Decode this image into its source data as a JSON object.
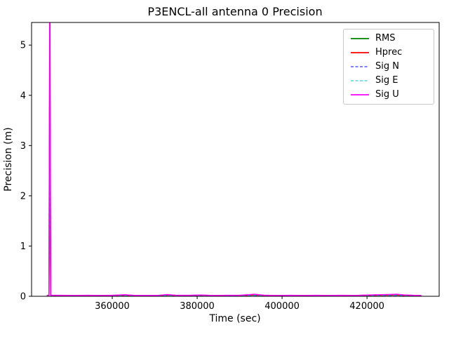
{
  "chart_data": {
    "type": "line",
    "title": "P3ENCL-all antenna 0 Precision",
    "xlabel": "Time (sec)",
    "ylabel": "Precision (m)",
    "xlim": [
      341000,
      437000
    ],
    "ylim": [
      0,
      5.45
    ],
    "xticks": [
      360000,
      380000,
      400000,
      420000
    ],
    "yticks": [
      0,
      1,
      2,
      3,
      4,
      5
    ],
    "grid": false,
    "legend_position": "upper right",
    "axis_color": "#000000",
    "x": [
      344600,
      345100,
      345300,
      345500,
      346000,
      348000,
      351000,
      354000,
      357000,
      360000,
      363000,
      365000,
      368000,
      371000,
      373000,
      375000,
      378000,
      381000,
      384000,
      387000,
      390000,
      393500,
      396000,
      399000,
      402000,
      405000,
      408000,
      411000,
      414000,
      417000,
      420000,
      422500,
      425000,
      427000,
      429000,
      431000,
      432800
    ],
    "series": [
      {
        "name": "RMS",
        "color": "#008000",
        "dash": false,
        "width": 1.5,
        "values": [
          0.018,
          0.018,
          6.0,
          0.018,
          0.018,
          0.018,
          0.014,
          0.018,
          0.014,
          0.018,
          0.028,
          0.018,
          0.014,
          0.018,
          0.03,
          0.018,
          0.018,
          0.022,
          0.014,
          0.018,
          0.018,
          0.035,
          0.018,
          0.014,
          0.018,
          0.014,
          0.018,
          0.014,
          0.018,
          0.014,
          0.022,
          0.028,
          0.03,
          0.035,
          0.022,
          0.018,
          0.014
        ]
      },
      {
        "name": "Hprec",
        "color": "#ff0000",
        "dash": false,
        "width": 1.5,
        "values": [
          0.012,
          0.012,
          5.0,
          0.012,
          0.012,
          0.012,
          0.01,
          0.012,
          0.01,
          0.012,
          0.02,
          0.012,
          0.01,
          0.012,
          0.022,
          0.012,
          0.012,
          0.015,
          0.01,
          0.012,
          0.012,
          0.025,
          0.012,
          0.01,
          0.012,
          0.01,
          0.012,
          0.01,
          0.012,
          0.01,
          0.015,
          0.02,
          0.022,
          0.025,
          0.015,
          0.012,
          0.01
        ]
      },
      {
        "name": "Sig N",
        "color": "#0000ff",
        "dash": true,
        "width": 1.0,
        "values": [
          0.008,
          0.008,
          3.0,
          0.008,
          0.008,
          0.008,
          0.007,
          0.008,
          0.007,
          0.008,
          0.014,
          0.008,
          0.007,
          0.008,
          0.015,
          0.008,
          0.008,
          0.01,
          0.007,
          0.008,
          0.008,
          0.018,
          0.008,
          0.007,
          0.008,
          0.007,
          0.008,
          0.007,
          0.008,
          0.007,
          0.01,
          0.014,
          0.015,
          0.018,
          0.01,
          0.008,
          0.007
        ]
      },
      {
        "name": "Sig E",
        "color": "#00bfcf",
        "dash": true,
        "width": 1.0,
        "values": [
          0.009,
          0.009,
          2.5,
          0.009,
          0.009,
          0.009,
          0.008,
          0.009,
          0.008,
          0.009,
          0.015,
          0.009,
          0.008,
          0.009,
          0.016,
          0.009,
          0.009,
          0.011,
          0.008,
          0.009,
          0.009,
          0.019,
          0.009,
          0.008,
          0.009,
          0.008,
          0.009,
          0.008,
          0.009,
          0.008,
          0.011,
          0.015,
          0.016,
          0.019,
          0.011,
          0.009,
          0.008
        ]
      },
      {
        "name": "Sig U",
        "color": "#ff00ff",
        "dash": false,
        "width": 1.5,
        "values": [
          0.02,
          0.02,
          7.0,
          0.02,
          0.02,
          0.02,
          0.015,
          0.02,
          0.015,
          0.02,
          0.03,
          0.02,
          0.015,
          0.02,
          0.035,
          0.02,
          0.02,
          0.025,
          0.015,
          0.02,
          0.02,
          0.04,
          0.02,
          0.015,
          0.02,
          0.015,
          0.02,
          0.015,
          0.02,
          0.015,
          0.025,
          0.03,
          0.035,
          0.04,
          0.025,
          0.02,
          0.015
        ]
      }
    ]
  }
}
